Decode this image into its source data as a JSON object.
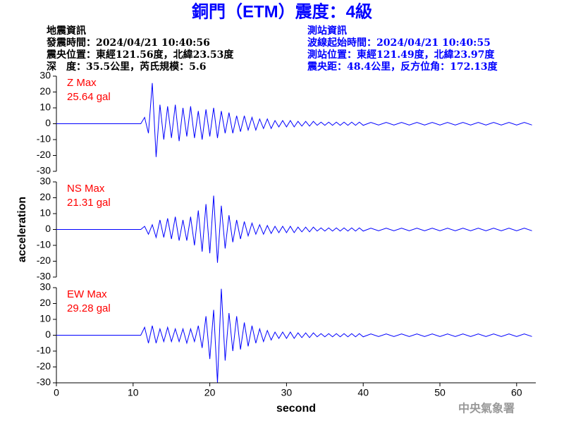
{
  "title": "銅門（ETM）震度：4級",
  "quake_info": [
    "地震資訊",
    "發震時間：2024/04/21 10:40:56",
    "震央位置：東經121.56度，北緯23.53度",
    "深　度：35.5公里，芮氏規模：5.6"
  ],
  "station_info": [
    "測站資訊",
    "波線起始時間：2024/04/21 10:40:55",
    "測站位置：東經121.49度，北緯23.97度",
    "震央距：48.4公里，反方位角：172.13度"
  ],
  "footer": "中央氣象署",
  "chart_data": [
    {
      "type": "line",
      "label": "Z Max",
      "max_label": "25.64 gal",
      "color": "#0000ff",
      "label_color": "#ff0000",
      "xlim": [
        0,
        62.5
      ],
      "ylim": [
        -30,
        30
      ],
      "yticks": [
        -30,
        -20,
        -10,
        0,
        10,
        20,
        30
      ],
      "x": [
        0,
        10.5,
        11,
        11.5,
        12,
        12.5,
        13,
        13.5,
        14,
        14.5,
        15,
        15.5,
        16,
        16.5,
        17,
        17.5,
        18,
        18.5,
        19,
        19.5,
        20,
        20.5,
        21,
        21.5,
        22,
        22.5,
        23,
        23.5,
        24,
        24.5,
        25,
        25.5,
        26,
        26.5,
        27,
        27.5,
        28,
        28.5,
        29,
        29.5,
        30,
        30.5,
        31,
        31.5,
        32,
        32.5,
        33,
        33.5,
        34,
        34.5,
        35,
        35.5,
        36,
        36.5,
        37,
        37.5,
        38,
        38.5,
        39,
        39.5,
        40,
        41,
        42,
        43,
        44,
        45,
        46,
        47,
        48,
        49,
        50,
        51,
        52,
        53,
        54,
        55,
        56,
        57,
        58,
        59,
        60,
        61,
        62
      ],
      "values": [
        0,
        0,
        0,
        4,
        -6,
        25.64,
        -21,
        12,
        -10,
        11,
        -9,
        12,
        -11,
        10,
        -8,
        11,
        -9,
        8,
        -10,
        9,
        -8,
        10,
        -9,
        8,
        -6,
        7,
        -6,
        5,
        -5,
        5,
        -4,
        4,
        -4,
        3,
        -3,
        3,
        -3,
        2,
        -2,
        2,
        -2,
        2,
        -2,
        1.5,
        -1.5,
        1.5,
        -1.5,
        1.5,
        -1,
        1,
        -1,
        1,
        -1,
        1,
        -1,
        1,
        -1,
        1,
        -1,
        1,
        -1,
        0.8,
        -0.8,
        0.8,
        -0.8,
        0.8,
        -0.8,
        0.8,
        -0.8,
        0.8,
        -0.8,
        0.8,
        -0.8,
        0.8,
        -0.8,
        0.8,
        -0.8,
        0.8,
        -0.8,
        0.8,
        -0.8,
        0.8,
        -0.8
      ]
    },
    {
      "type": "line",
      "label": "NS Max",
      "max_label": "21.31 gal",
      "color": "#0000ff",
      "label_color": "#ff0000",
      "ylabel": "acceleration",
      "xlim": [
        0,
        62.5
      ],
      "ylim": [
        -30,
        30
      ],
      "yticks": [
        -30,
        -20,
        -10,
        0,
        10,
        20,
        30
      ],
      "x": [
        0,
        10.5,
        11,
        11.5,
        12,
        12.5,
        13,
        13.5,
        14,
        14.5,
        15,
        15.5,
        16,
        16.5,
        17,
        17.5,
        18,
        18.5,
        19,
        19.5,
        20,
        20.5,
        21,
        21.5,
        22,
        22.5,
        23,
        23.5,
        24,
        24.5,
        25,
        25.5,
        26,
        26.5,
        27,
        27.5,
        28,
        28.5,
        29,
        29.5,
        30,
        30.5,
        31,
        31.5,
        32,
        32.5,
        33,
        33.5,
        34,
        34.5,
        35,
        35.5,
        36,
        36.5,
        37,
        37.5,
        38,
        38.5,
        39,
        39.5,
        40,
        41,
        42,
        43,
        44,
        45,
        46,
        47,
        48,
        49,
        50,
        51,
        52,
        53,
        54,
        55,
        56,
        57,
        58,
        59,
        60,
        61,
        62
      ],
      "values": [
        0,
        0,
        0,
        2,
        -3,
        3,
        -5,
        6,
        -5,
        7,
        -6,
        8,
        -7,
        6,
        -7,
        8,
        -10,
        12,
        -14,
        16,
        -15,
        21.31,
        -21,
        15,
        -12,
        9,
        -8,
        6,
        -6,
        5,
        -4,
        4,
        -3,
        3,
        -3,
        2.5,
        -2.5,
        2,
        -2,
        2,
        -2,
        2,
        -2,
        1.5,
        -1.5,
        1.5,
        -1.5,
        1.5,
        -1,
        1,
        -1,
        1,
        -1,
        1,
        -1,
        1,
        -1,
        1,
        -1,
        1,
        -1,
        0.8,
        -0.8,
        0.8,
        -0.8,
        0.8,
        -0.8,
        0.8,
        -0.8,
        0.8,
        -0.8,
        0.8,
        -0.8,
        0.8,
        -0.8,
        0.8,
        -0.8,
        0.8,
        -0.8,
        0.8,
        -0.8,
        0.8,
        -0.8
      ]
    },
    {
      "type": "line",
      "label": "EW Max",
      "max_label": "29.28 gal",
      "color": "#0000ff",
      "label_color": "#ff0000",
      "xlabel": "second",
      "xlim": [
        0,
        62.5
      ],
      "ylim": [
        -30,
        30
      ],
      "yticks": [
        -30,
        -20,
        -10,
        0,
        10,
        20,
        30
      ],
      "xticks": [
        0,
        10,
        20,
        30,
        40,
        50,
        60
      ],
      "x": [
        0,
        10.5,
        11,
        11.5,
        12,
        12.5,
        13,
        13.5,
        14,
        14.5,
        15,
        15.5,
        16,
        16.5,
        17,
        17.5,
        18,
        18.5,
        19,
        19.5,
        20,
        20.5,
        21,
        21.5,
        22,
        22.5,
        23,
        23.5,
        24,
        24.5,
        25,
        25.5,
        26,
        26.5,
        27,
        27.5,
        28,
        28.5,
        29,
        29.5,
        30,
        30.5,
        31,
        31.5,
        32,
        32.5,
        33,
        33.5,
        34,
        34.5,
        35,
        35.5,
        36,
        36.5,
        37,
        37.5,
        38,
        38.5,
        39,
        39.5,
        40,
        41,
        42,
        43,
        44,
        45,
        46,
        47,
        48,
        49,
        50,
        51,
        52,
        53,
        54,
        55,
        56,
        57,
        58,
        59,
        60,
        61,
        62
      ],
      "values": [
        0,
        0,
        0,
        5,
        -5,
        6,
        -5,
        4,
        -4,
        5,
        -4,
        4,
        -4,
        4,
        -5,
        4,
        -4,
        6,
        -8,
        12,
        -15,
        16,
        -30,
        29.28,
        -16,
        14,
        -10,
        12,
        -9,
        8,
        -7,
        6,
        -5,
        4,
        -4,
        3,
        -3,
        2,
        -2,
        2,
        -2,
        2,
        -2,
        1.5,
        -1.5,
        1.5,
        -1.5,
        1.5,
        -1,
        1,
        -1,
        1,
        -1,
        1,
        -1,
        1,
        -1,
        1,
        -1,
        1,
        -1,
        0.8,
        -0.8,
        0.8,
        -0.8,
        0.8,
        -0.8,
        0.8,
        -0.8,
        0.8,
        -0.8,
        0.8,
        -0.8,
        0.8,
        -0.8,
        0.8,
        -0.8,
        0.8,
        -0.8,
        0.8,
        -0.8,
        0.8,
        -0.8
      ]
    }
  ]
}
